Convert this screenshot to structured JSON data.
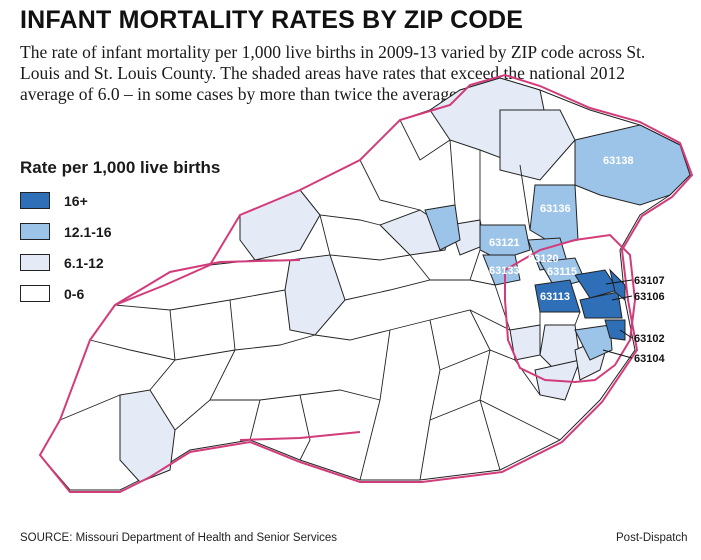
{
  "title": "INFANT MORTALITY RATES BY ZIP CODE",
  "description": "The rate of infant mortality per 1,000 live births in 2009-13 varied by ZIP code across St. Louis and St. Louis County. The shaded areas have rates that exceed the national 2012 average of 6.0 – in some cases by more than twice the average.",
  "legend": {
    "title": "Rate per 1,000 live births",
    "items": [
      {
        "label": "16+",
        "color": "#2e6fb7"
      },
      {
        "label": "12.1-16",
        "color": "#9cc3e8"
      },
      {
        "label": "6.1-12",
        "color": "#e4ebf6"
      },
      {
        "label": "0-6",
        "color": "#ffffff"
      }
    ]
  },
  "colors": {
    "county_boundary": "#d23c7a",
    "zip_border": "#222222"
  },
  "zip_labels": {
    "z63138": "63138",
    "z63136": "63136",
    "z63121": "63121",
    "z63120": "63120",
    "z63133": "63133",
    "z63115": "63115",
    "z63113": "63113",
    "z63107": "63107",
    "z63106": "63106",
    "z63102": "63102",
    "z63104": "63104"
  },
  "source": "SOURCE: Missouri Department of Health and Senior Services",
  "credit": "Post-Dispatch"
}
